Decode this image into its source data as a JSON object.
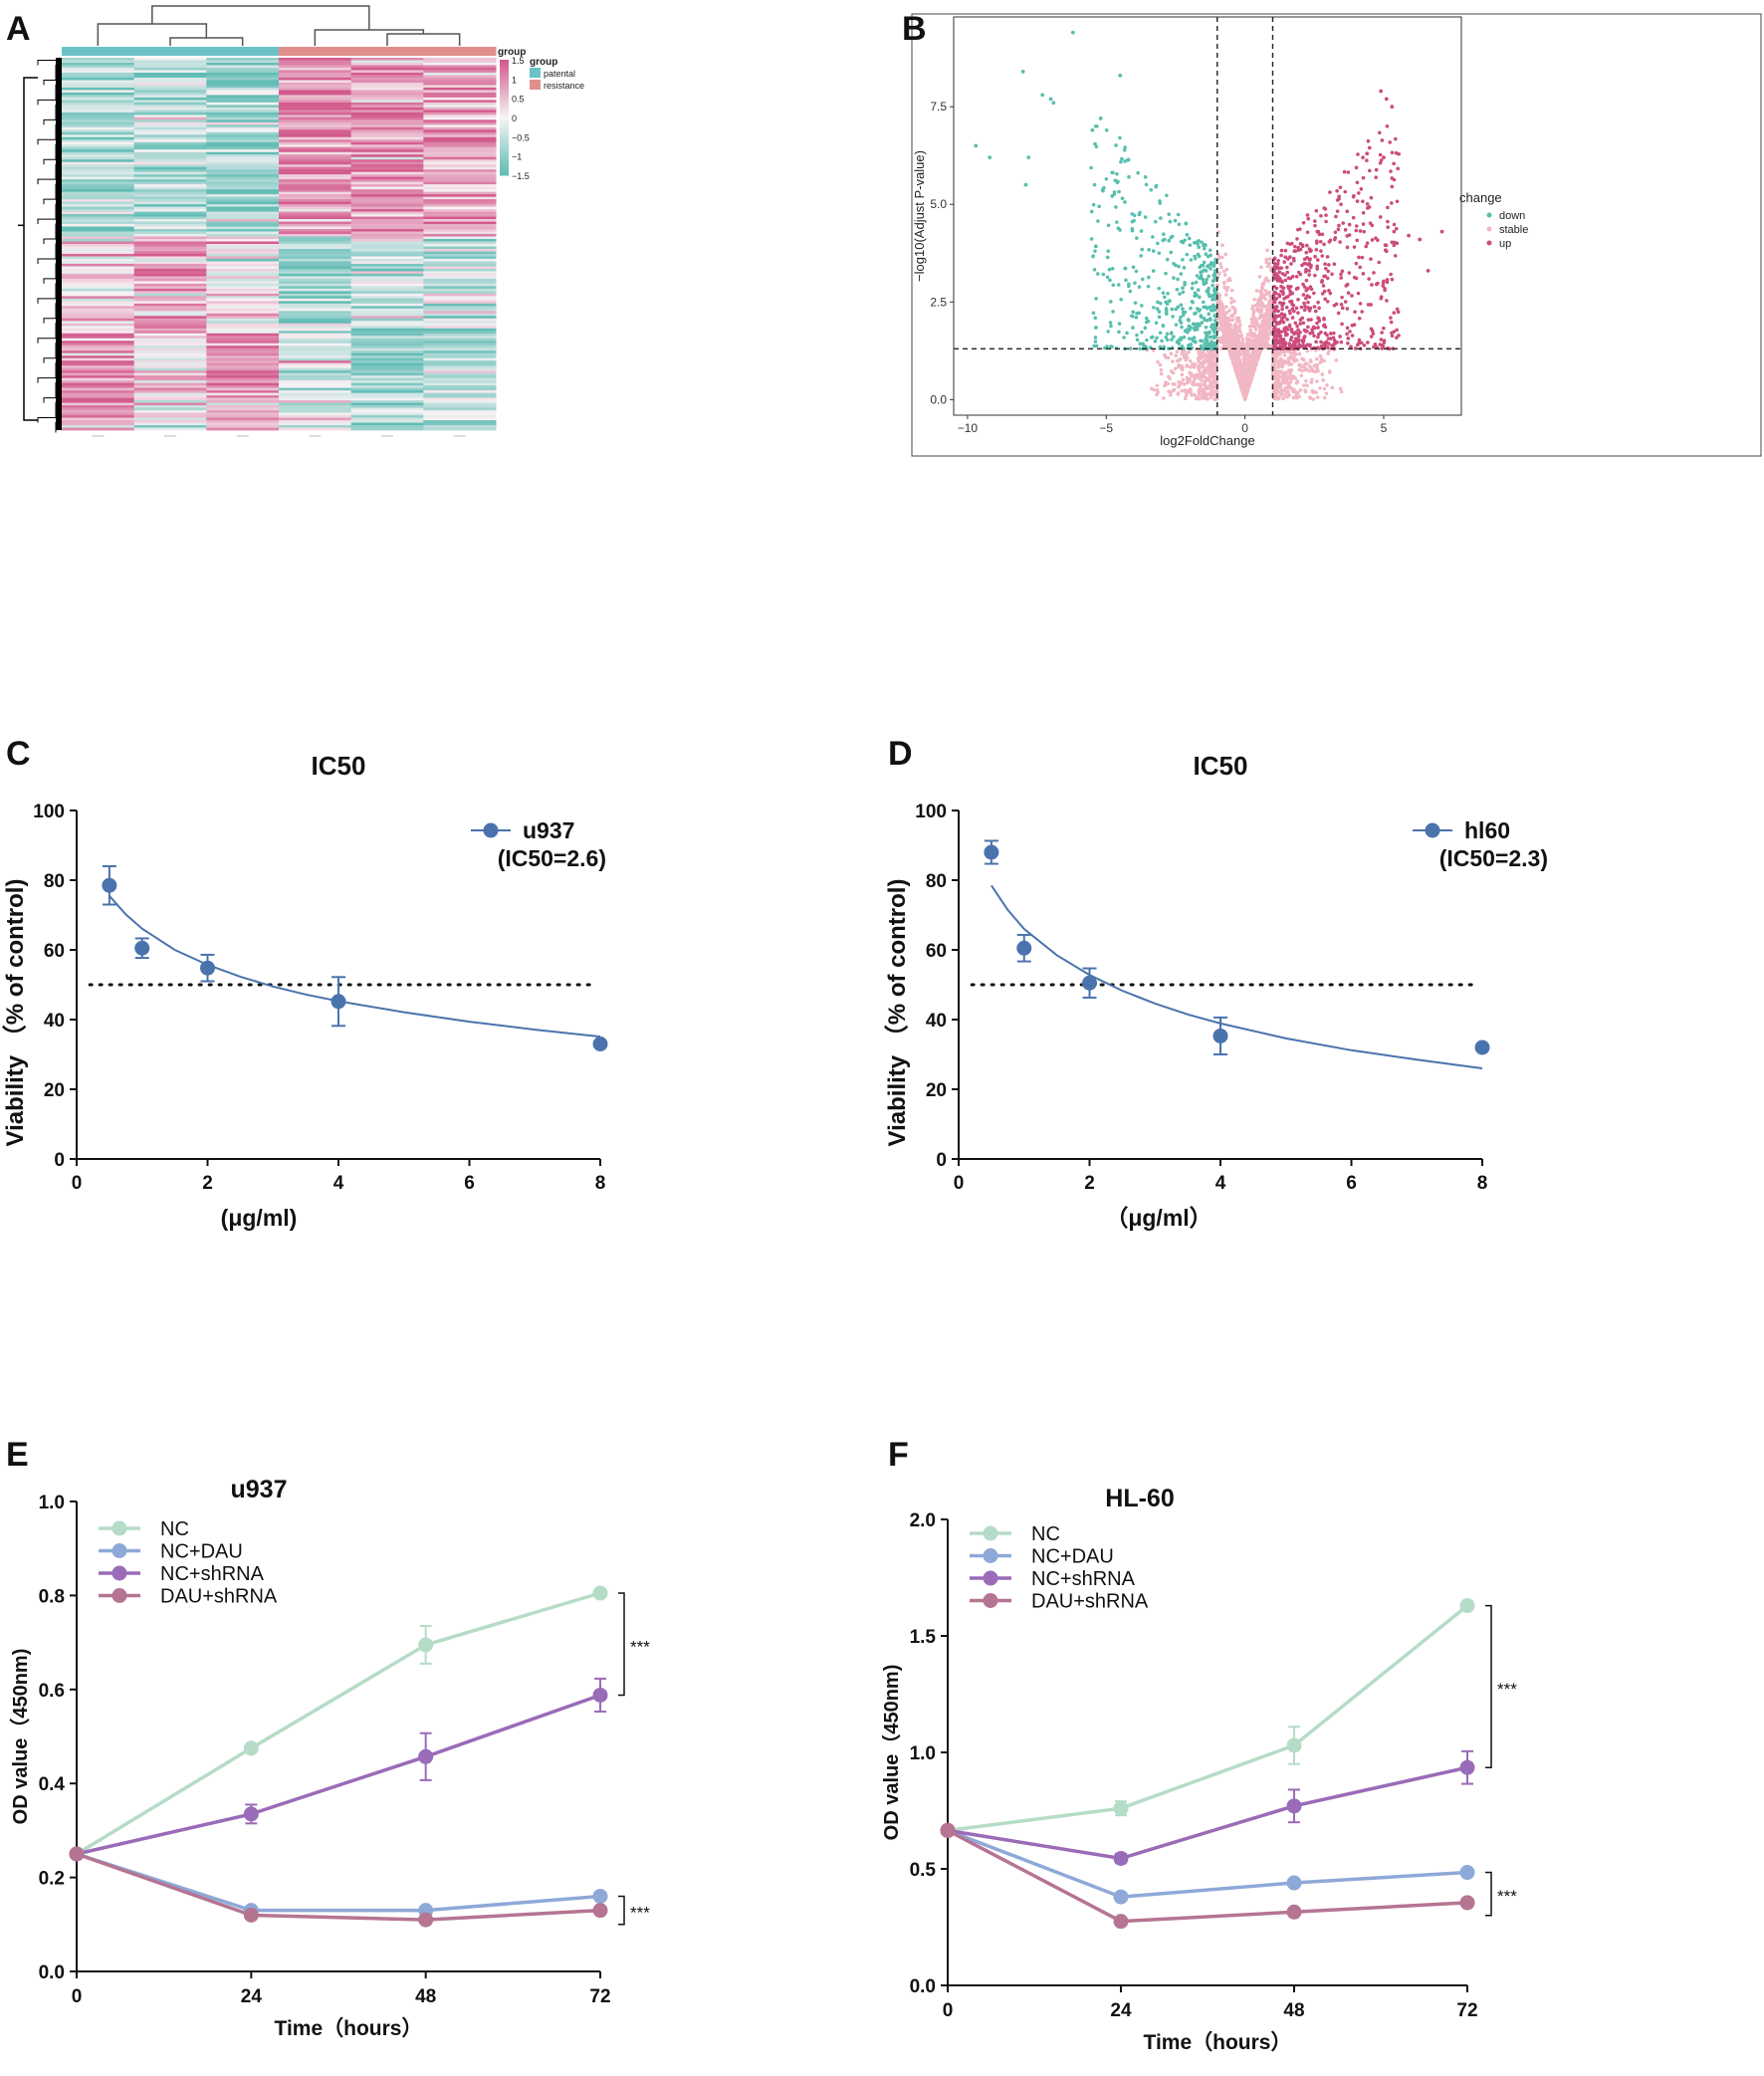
{
  "panels": {
    "A": {
      "label": "A",
      "chart_data": {
        "type": "heatmap",
        "title": "",
        "columns": 6,
        "column_groups": [
          "patental",
          "patental",
          "patental",
          "resistance",
          "resistance",
          "resistance"
        ],
        "legend_group_title": "group",
        "legend_groups": [
          {
            "name": "patental",
            "color": "#6cc1c9"
          },
          {
            "name": "resistance",
            "color": "#e08f8b"
          }
        ],
        "scale_ticks": [
          "1.5",
          "1",
          "0.5",
          "0",
          "-0.5",
          "-1",
          "-1.5"
        ],
        "scale_range": [
          -1.5,
          1.5
        ],
        "low_color": "#62bdb5",
        "mid_color": "#f8f3f5",
        "high_color": "#d35b8e",
        "block_pattern": [
          {
            "rows": "top",
            "pattern": [
              -0.6,
              -0.5,
              -0.7,
              0.8,
              0.7,
              0.6
            ]
          },
          {
            "rows": "middle",
            "pattern": [
              0.2,
              0.6,
              0.1,
              -0.6,
              -0.4,
              -0.5
            ]
          },
          {
            "rows": "bottom",
            "pattern": [
              0.7,
              0.1,
              0.8,
              -0.4,
              -0.7,
              -0.6
            ]
          }
        ]
      }
    },
    "B": {
      "label": "B",
      "chart_data": {
        "type": "scatter",
        "title": "",
        "xlabel": "log2FoldChange",
        "ylabel": "-log10(Adjust P-value)",
        "xlim": [
          -10.5,
          7.8
        ],
        "ylim": [
          -0.4,
          9.8
        ],
        "xticks": [
          -10,
          -5,
          0,
          5
        ],
        "xtick_labels": [
          "-10",
          "-5",
          "0",
          "5"
        ],
        "yticks": [
          0,
          2.5,
          5,
          7.5
        ],
        "ytick_labels": [
          "0.0",
          "2.5",
          "5.0",
          "7.5"
        ],
        "vlines": [
          -1,
          1
        ],
        "hline": 1.3,
        "legend_title": "change",
        "legend": [
          {
            "name": "down",
            "color": "#58bfae"
          },
          {
            "name": "stable",
            "color": "#f1b7c4"
          },
          {
            "name": "up",
            "color": "#cc4c7c"
          }
        ],
        "highlight_points_down": [
          [
            -6.2,
            9.4
          ],
          [
            -8,
            8.4
          ],
          [
            -4.5,
            8.3
          ],
          [
            -7,
            7.7
          ],
          [
            -7.3,
            7.8
          ],
          [
            -6.9,
            7.6
          ],
          [
            -5.2,
            7.2
          ],
          [
            -5.5,
            6.9
          ],
          [
            -9.7,
            6.5
          ],
          [
            -9.2,
            6.2
          ],
          [
            -7.8,
            6.2
          ],
          [
            -7.9,
            5.5
          ]
        ],
        "highlight_points_up": [
          [
            4.9,
            7.9
          ],
          [
            5.3,
            7.5
          ],
          [
            5.1,
            7.7
          ],
          [
            5,
            6.2
          ],
          [
            4.4,
            6.3
          ],
          [
            7.1,
            4.3
          ],
          [
            6.6,
            3.3
          ],
          [
            6.3,
            4.1
          ],
          [
            5.9,
            4.2
          ]
        ]
      }
    },
    "C": {
      "label": "C",
      "chart_data": {
        "type": "scatter",
        "title": "IC50",
        "xlabel": "(μg/ml)",
        "ylabel": "Viability （% of control)",
        "xlim": [
          0,
          8
        ],
        "ylim": [
          0,
          100
        ],
        "xticks": [
          0,
          2,
          4,
          6,
          8
        ],
        "xtick_labels": [
          "0",
          "2",
          "4",
          "6",
          "8"
        ],
        "yticks": [
          0,
          20,
          40,
          60,
          80,
          100
        ],
        "ytick_labels": [
          "0",
          "20",
          "40",
          "60",
          "80",
          "100"
        ],
        "x": [
          0.5,
          1,
          2,
          4,
          8
        ],
        "values": [
          78.5,
          60.5,
          54.8,
          45.2,
          33
        ],
        "errors": [
          5.5,
          2.8,
          3.8,
          7,
          0
        ],
        "fit_curve": [
          [
            0.5,
            75.5
          ],
          [
            0.75,
            70.2
          ],
          [
            1,
            66.1
          ],
          [
            1.5,
            60
          ],
          [
            2,
            55.7
          ],
          [
            2.5,
            52.3
          ],
          [
            3,
            49.5
          ],
          [
            3.5,
            47.2
          ],
          [
            4,
            45.3
          ],
          [
            5,
            42.1
          ],
          [
            6,
            39.4
          ],
          [
            7,
            37.1
          ],
          [
            8,
            35.1
          ]
        ],
        "threshold": 50,
        "series_name": "u937",
        "annotation": "(IC50=2.6)",
        "color": "#4a73ad"
      }
    },
    "D": {
      "label": "D",
      "chart_data": {
        "type": "scatter",
        "title": "IC50",
        "xlabel": "（μg/ml）",
        "ylabel": "Viability （% of control)",
        "xlim": [
          0,
          8
        ],
        "ylim": [
          0,
          100
        ],
        "xticks": [
          0,
          2,
          4,
          6,
          8
        ],
        "xtick_labels": [
          "0",
          "2",
          "4",
          "6",
          "8"
        ],
        "yticks": [
          0,
          20,
          40,
          60,
          80,
          100
        ],
        "ytick_labels": [
          "0",
          "20",
          "40",
          "60",
          "80",
          "100"
        ],
        "x": [
          0.5,
          1,
          2,
          4,
          8
        ],
        "values": [
          88,
          60.5,
          50.5,
          35.3,
          32
        ],
        "errors": [
          3.3,
          3.8,
          4.2,
          5.3,
          0
        ],
        "fit_curve": [
          [
            0.5,
            78.5
          ],
          [
            0.75,
            71.5
          ],
          [
            1,
            66
          ],
          [
            1.5,
            58.5
          ],
          [
            2,
            52.8
          ],
          [
            2.5,
            48.3
          ],
          [
            3,
            44.6
          ],
          [
            3.5,
            41.5
          ],
          [
            4,
            38.9
          ],
          [
            5,
            34.6
          ],
          [
            6,
            31.2
          ],
          [
            7,
            28.5
          ],
          [
            8,
            26
          ]
        ],
        "threshold": 50,
        "series_name": "hl60",
        "annotation": "(IC50=2.3)",
        "color": "#4a73ad"
      }
    },
    "E": {
      "label": "E",
      "chart_data": {
        "type": "line",
        "title": "u937",
        "xlabel": "Time（hours）",
        "ylabel": "OD value（450nm)",
        "x": [
          0,
          24,
          48,
          72
        ],
        "xlim": [
          0,
          72
        ],
        "ylim": [
          0,
          1.0
        ],
        "xticks": [
          0,
          24,
          48,
          72
        ],
        "xtick_labels": [
          "0",
          "24",
          "48",
          "72"
        ],
        "yticks": [
          0,
          0.2,
          0.4,
          0.6,
          0.8,
          1.0
        ],
        "ytick_labels": [
          "0.0",
          "0.2",
          "0.4",
          "0.6",
          "0.8",
          "1.0"
        ],
        "series": [
          {
            "name": "NC",
            "values": [
              0.25,
              0.475,
              0.695,
              0.805
            ],
            "errors": [
              0,
              0.01,
              0.04,
              0.01
            ],
            "color": "#b5dcc6"
          },
          {
            "name": "NC+DAU",
            "values": [
              0.25,
              0.13,
              0.13,
              0.16
            ],
            "errors": [
              0,
              0.01,
              0.01,
              0.01
            ],
            "color": "#8ea9d8"
          },
          {
            "name": "NC+shRNA",
            "values": [
              0.25,
              0.335,
              0.457,
              0.588
            ],
            "errors": [
              0,
              0.02,
              0.05,
              0.035
            ],
            "color": "#9a6bb8"
          },
          {
            "name": "DAU+shRNA",
            "values": [
              0.25,
              0.12,
              0.11,
              0.13
            ],
            "errors": [
              0,
              0.01,
              0.01,
              0.01
            ],
            "color": "#b57492"
          }
        ],
        "significance": [
          {
            "label": "***",
            "from": 0.805,
            "to": 0.588
          },
          {
            "label": "***",
            "from": 0.16,
            "to": 0.1
          }
        ]
      }
    },
    "F": {
      "label": "F",
      "chart_data": {
        "type": "line",
        "title": "HL-60",
        "xlabel": "Time（hours）",
        "ylabel": "OD value（450nm)",
        "x": [
          0,
          24,
          48,
          72
        ],
        "xlim": [
          0,
          72
        ],
        "ylim": [
          0,
          2.0
        ],
        "xticks": [
          0,
          24,
          48,
          72
        ],
        "xtick_labels": [
          "0",
          "24",
          "48",
          "72"
        ],
        "yticks": [
          0,
          0.5,
          1.0,
          1.5,
          2.0
        ],
        "ytick_labels": [
          "0.0",
          "0.5",
          "1.0",
          "1.5",
          "2.0"
        ],
        "series": [
          {
            "name": "NC",
            "values": [
              0.665,
              0.76,
              1.03,
              1.63
            ],
            "errors": [
              0,
              0.03,
              0.08,
              0.01
            ],
            "color": "#b5dcc6"
          },
          {
            "name": "NC+DAU",
            "values": [
              0.665,
              0.38,
              0.44,
              0.485
            ],
            "errors": [
              0,
              0.01,
              0.01,
              0.01
            ],
            "color": "#8ea9d8"
          },
          {
            "name": "NC+shRNA",
            "values": [
              0.665,
              0.545,
              0.77,
              0.935
            ],
            "errors": [
              0,
              0.02,
              0.07,
              0.07
            ],
            "color": "#9a6bb8"
          },
          {
            "name": "DAU+shRNA",
            "values": [
              0.665,
              0.275,
              0.315,
              0.355
            ],
            "errors": [
              0,
              0.01,
              0.01,
              0.01
            ],
            "color": "#b57492"
          }
        ],
        "significance": [
          {
            "label": "***",
            "from": 1.63,
            "to": 0.935
          },
          {
            "label": "***",
            "from": 0.485,
            "to": 0.3
          }
        ]
      }
    }
  }
}
